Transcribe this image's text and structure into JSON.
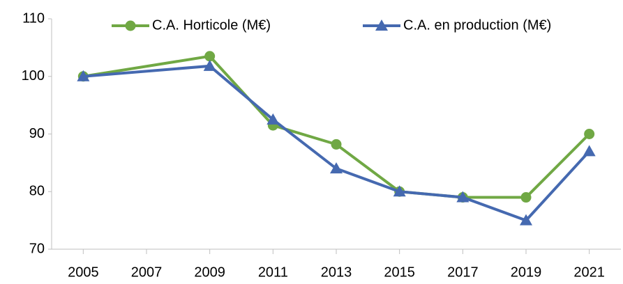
{
  "chart_data": {
    "type": "line",
    "x": [
      2005,
      2009,
      2011,
      2013,
      2015,
      2017,
      2019,
      2021
    ],
    "series": [
      {
        "name": "C.A. Horticole (M€)",
        "color": "#70a844",
        "marker": "circle",
        "values": [
          100,
          103.5,
          91.5,
          88.2,
          80,
          79,
          79,
          90
        ]
      },
      {
        "name": "C.A. en production (M€)",
        "color": "#4569b0",
        "marker": "triangle",
        "values": [
          100,
          101.8,
          92.5,
          84,
          80,
          79,
          75,
          87
        ]
      }
    ],
    "xlim": [
      2004,
      2022
    ],
    "xticks": [
      2005,
      2007,
      2009,
      2011,
      2013,
      2015,
      2017,
      2019,
      2021
    ],
    "ylim": [
      70,
      110
    ],
    "yticks": [
      70,
      80,
      90,
      100,
      110
    ],
    "grid": false,
    "legend": "top"
  }
}
